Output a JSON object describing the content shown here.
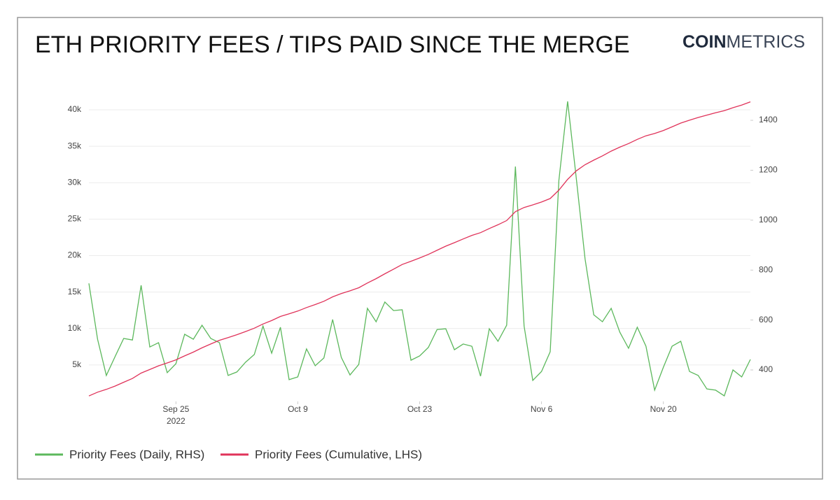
{
  "chart_data": {
    "type": "line",
    "title": "ETH PRIORITY FEES / TIPS PAID SINCE THE MERGE",
    "brand": {
      "bold": "COIN",
      "light": "METRICS"
    },
    "x": [
      "2022-09-15",
      "2022-09-16",
      "2022-09-17",
      "2022-09-18",
      "2022-09-19",
      "2022-09-20",
      "2022-09-21",
      "2022-09-22",
      "2022-09-23",
      "2022-09-24",
      "2022-09-25",
      "2022-09-26",
      "2022-09-27",
      "2022-09-28",
      "2022-09-29",
      "2022-09-30",
      "2022-10-01",
      "2022-10-02",
      "2022-10-03",
      "2022-10-04",
      "2022-10-05",
      "2022-10-06",
      "2022-10-07",
      "2022-10-08",
      "2022-10-09",
      "2022-10-10",
      "2022-10-11",
      "2022-10-12",
      "2022-10-13",
      "2022-10-14",
      "2022-10-15",
      "2022-10-16",
      "2022-10-17",
      "2022-10-18",
      "2022-10-19",
      "2022-10-20",
      "2022-10-21",
      "2022-10-22",
      "2022-10-23",
      "2022-10-24",
      "2022-10-25",
      "2022-10-26",
      "2022-10-27",
      "2022-10-28",
      "2022-10-29",
      "2022-10-30",
      "2022-10-31",
      "2022-11-01",
      "2022-11-02",
      "2022-11-03",
      "2022-11-04",
      "2022-11-05",
      "2022-11-06",
      "2022-11-07",
      "2022-11-08",
      "2022-11-09",
      "2022-11-10",
      "2022-11-11",
      "2022-11-12",
      "2022-11-13",
      "2022-11-14",
      "2022-11-15",
      "2022-11-16",
      "2022-11-17",
      "2022-11-18",
      "2022-11-19",
      "2022-11-20",
      "2022-11-21",
      "2022-11-22",
      "2022-11-23",
      "2022-11-24",
      "2022-11-25",
      "2022-11-26",
      "2022-11-27",
      "2022-11-28",
      "2022-11-29",
      "2022-11-30"
    ],
    "xlim": [
      "2022-09-15",
      "2022-11-30"
    ],
    "xticks": [
      {
        "value": "2022-09-25",
        "label": "Sep 25"
      },
      {
        "value": "2022-10-09",
        "label": "Oct 9"
      },
      {
        "value": "2022-10-23",
        "label": "Oct 23"
      },
      {
        "value": "2022-11-06",
        "label": "Nov 6"
      },
      {
        "value": "2022-11-20",
        "label": "Nov 20"
      }
    ],
    "year_label": "2022",
    "ylim": [
      0,
      42500
    ],
    "yticks": [
      {
        "value": 5000,
        "label": "5k"
      },
      {
        "value": 10000,
        "label": "10k"
      },
      {
        "value": 15000,
        "label": "15k"
      },
      {
        "value": 20000,
        "label": "20k"
      },
      {
        "value": 25000,
        "label": "25k"
      },
      {
        "value": 30000,
        "label": "30k"
      },
      {
        "value": 35000,
        "label": "35k"
      },
      {
        "value": 40000,
        "label": "40k"
      }
    ],
    "y2lim": [
      274,
      1515
    ],
    "y2ticks": [
      400,
      600,
      800,
      1000,
      1200,
      1400
    ],
    "grid": true,
    "legend": "bottom-left",
    "series": [
      {
        "name": "Priority Fees (Daily, RHS)",
        "color": "#5cb85c",
        "axis": "y2",
        "values": [
          747,
          523,
          378,
          453,
          526,
          520,
          739,
          492,
          509,
          389,
          425,
          543,
          523,
          579,
          526,
          509,
          378,
          392,
          431,
          462,
          576,
          467,
          571,
          361,
          372,
          484,
          417,
          448,
          602,
          450,
          380,
          422,
          647,
          593,
          672,
          638,
          641,
          439,
          456,
          490,
          562,
          565,
          481,
          504,
          495,
          375,
          565,
          515,
          579,
          1215,
          576,
          358,
          394,
          473,
          1159,
          1476,
          1167,
          845,
          621,
          593,
          647,
          551,
          487,
          571,
          495,
          319,
          411,
          495,
          515,
          394,
          378,
          324,
          319,
          296,
          400,
          372,
          442
        ]
      },
      {
        "name": "Priority Fees (Cumulative, LHS)",
        "color": "#e0335a",
        "axis": "y",
        "values": [
          747,
          1270,
          1648,
          2101,
          2627,
          3147,
          3886,
          4378,
          4887,
          5276,
          5701,
          6244,
          6767,
          7346,
          7872,
          8381,
          8759,
          9151,
          9582,
          10044,
          10620,
          11087,
          11658,
          12019,
          12391,
          12875,
          13292,
          13740,
          14342,
          14792,
          15172,
          15594,
          16241,
          16834,
          17506,
          18144,
          18785,
          19224,
          19680,
          20170,
          20732,
          21297,
          21778,
          22282,
          22777,
          23152,
          23717,
          24232,
          24811,
          26026,
          26602,
          26960,
          27354,
          27827,
          28986,
          30462,
          31629,
          32474,
          33095,
          33688,
          34335,
          34886,
          35373,
          35944,
          36439,
          36758,
          37169,
          37664,
          38179,
          38573,
          38951,
          39275,
          39594,
          39890,
          40290,
          40662,
          41104
        ]
      }
    ]
  }
}
